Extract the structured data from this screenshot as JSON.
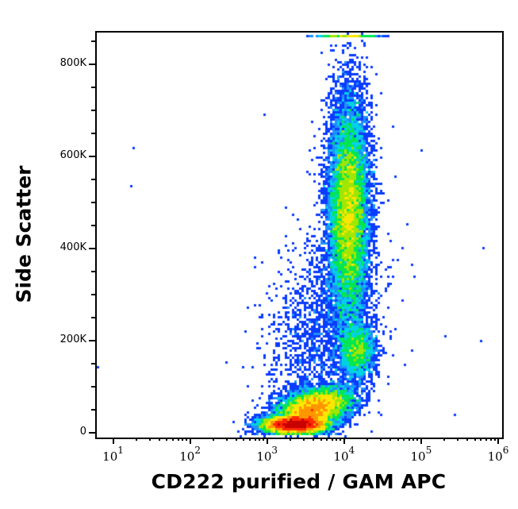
{
  "chart_data": {
    "type": "scatter",
    "subtype": "flow-cytometry-density-dotplot",
    "title": "",
    "xlabel": "CD222 purified / GAM APC",
    "ylabel": "Side Scatter",
    "x_scale": "log",
    "xlim": [
      6,
      1100000
    ],
    "ylim": [
      -8000,
      870000
    ],
    "x_ticks": [
      {
        "base": "10",
        "exp": "1",
        "value": 10
      },
      {
        "base": "10",
        "exp": "2",
        "value": 100
      },
      {
        "base": "10",
        "exp": "3",
        "value": 1000
      },
      {
        "base": "10",
        "exp": "4",
        "value": 10000
      },
      {
        "base": "10",
        "exp": "5",
        "value": 100000
      },
      {
        "base": "10",
        "exp": "6",
        "value": 1000000
      }
    ],
    "y_ticks": [
      {
        "label": "0",
        "value": 0
      },
      {
        "label": "200K",
        "value": 200000
      },
      {
        "label": "400K",
        "value": 400000
      },
      {
        "label": "600K",
        "value": 600000
      },
      {
        "label": "800K",
        "value": 800000
      }
    ],
    "y_minor_step": 50000,
    "grid": false,
    "legend": null,
    "colormap": [
      "#0000c8",
      "#0a3cff",
      "#1e90ff",
      "#00d2e6",
      "#00e650",
      "#a0e600",
      "#ffe600",
      "#ff9600",
      "#ff2800",
      "#c80000"
    ],
    "populations": [
      {
        "name": "lymphocytes-low-SSC",
        "x_log_center": 3.35,
        "x_log_sd": 0.2,
        "y_center": 20000,
        "y_sd": 9000,
        "count": 9000,
        "density": "high (red)"
      },
      {
        "name": "low-SSC-tail",
        "x_log_center": 3.6,
        "x_log_sd": 0.22,
        "y_center": 55000,
        "y_sd": 22000,
        "count": 9000,
        "density": "high (red/yellow)"
      },
      {
        "name": "monocytes",
        "x_log_center": 4.15,
        "x_log_sd": 0.12,
        "y_center": 180000,
        "y_sd": 30000,
        "count": 2200,
        "density": "medium (green)"
      },
      {
        "name": "granulocytes",
        "x_log_center": 4.05,
        "x_log_sd": 0.13,
        "y_center": 480000,
        "y_sd": 120000,
        "count": 14000,
        "density": "medium (green)"
      },
      {
        "name": "scattered-events",
        "x_log_center": 3.7,
        "x_log_sd": 0.35,
        "y_center": 220000,
        "y_sd": 120000,
        "count": 1800,
        "density": "low (blue)"
      },
      {
        "name": "saturated-top-edge",
        "x_log_center": 4.05,
        "x_log_sd": 0.2,
        "y_center": 862000,
        "y_sd": 2000,
        "count": 400,
        "density": "low (blue/green)"
      }
    ]
  }
}
